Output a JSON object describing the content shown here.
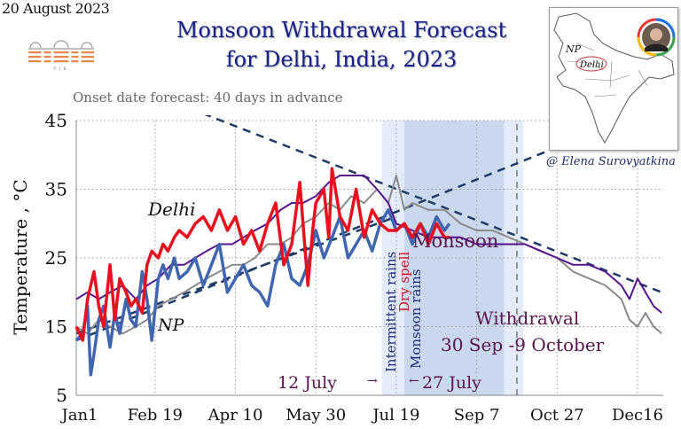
{
  "header": {
    "date": "20 August 2023",
    "title_line1": "Monsoon Withdrawal Forecast",
    "title_line2": "for Delhi, India, 2023",
    "subtitle": "Onset date forecast: 40 days in advance",
    "logo_text": "PIK",
    "credit": "@ Elena Surovyatkina"
  },
  "map_inset": {
    "labels": [
      "NP",
      "Delhi"
    ],
    "avatar": "author-photo"
  },
  "colors": {
    "delhi_max": "#e8101e",
    "delhi_min": "#4166b0",
    "np_max": "#56148e",
    "np_min": "#8a8a8a",
    "trend": "#1f3a66",
    "onset_band_light": "#e3ecf8",
    "onset_band_dark": "#c9d8ec",
    "annotation": "#5a1450",
    "title": "#1c1f8a"
  },
  "chart_data": {
    "type": "line",
    "title": "Monsoon Withdrawal Forecast for Delhi, India, 2023",
    "xlabel": "",
    "ylabel": "Temperature , °C",
    "ylim": [
      5,
      45
    ],
    "xlim_days": [
      1,
      366
    ],
    "yticks": [
      45,
      35,
      25,
      15,
      5
    ],
    "xticks": [
      {
        "day": 1,
        "label": "Jan1"
      },
      {
        "day": 50,
        "label": "Feb 19"
      },
      {
        "day": 100,
        "label": "Apr 10"
      },
      {
        "day": 150,
        "label": "May 30"
      },
      {
        "day": 200,
        "label": "Jul 19"
      },
      {
        "day": 250,
        "label": "Sep 7"
      },
      {
        "day": 300,
        "label": "Oct 27"
      },
      {
        "day": 350,
        "label": "Dec16"
      }
    ],
    "grid": true,
    "series": [
      {
        "name": "Delhi (red)",
        "x": [
          1,
          5,
          8,
          12,
          15,
          18,
          22,
          25,
          28,
          32,
          35,
          38,
          42,
          45,
          48,
          52,
          55,
          58,
          62,
          65,
          70,
          75,
          80,
          85,
          90,
          95,
          100,
          105,
          110,
          115,
          120,
          125,
          130,
          135,
          140,
          145,
          148,
          150,
          155,
          158,
          160,
          165,
          170,
          175,
          180,
          185,
          190,
          195,
          200,
          205,
          210,
          215,
          220,
          225,
          230,
          233
        ],
        "values": [
          15,
          13,
          19,
          23,
          18,
          15,
          24,
          16,
          22,
          20,
          18,
          19,
          17,
          24,
          26,
          25,
          27,
          26,
          28,
          29,
          28,
          30,
          31,
          29,
          32,
          29,
          31,
          27,
          29,
          26,
          30,
          33,
          24,
          27,
          36,
          21,
          29,
          33,
          35,
          28,
          38,
          31,
          29,
          35,
          28,
          32,
          30,
          29,
          29,
          30,
          28,
          30,
          27,
          30,
          28,
          28
        ]
      },
      {
        "name": "Delhi (blue)",
        "x": [
          1,
          5,
          8,
          10,
          12,
          15,
          18,
          22,
          25,
          28,
          32,
          35,
          38,
          42,
          45,
          48,
          52,
          55,
          58,
          62,
          65,
          70,
          75,
          80,
          85,
          90,
          95,
          100,
          105,
          110,
          115,
          120,
          125,
          130,
          135,
          140,
          145,
          150,
          155,
          160,
          165,
          170,
          175,
          180,
          185,
          190,
          195,
          200,
          205,
          210,
          215,
          220,
          225,
          230,
          233
        ],
        "values": [
          13,
          14,
          18,
          8,
          11,
          16,
          18,
          12,
          17,
          14,
          19,
          16,
          15,
          23,
          19,
          13,
          22,
          24,
          22,
          25,
          22,
          23,
          25,
          21,
          24,
          27,
          20,
          22,
          24,
          21,
          20,
          18,
          24,
          27,
          22,
          21,
          24,
          29,
          25,
          28,
          31,
          25,
          27,
          29,
          26,
          30,
          32,
          29,
          30,
          27,
          30,
          28,
          31,
          29,
          30
        ]
      },
      {
        "name": "NP (purple)",
        "x": [
          1,
          8,
          15,
          22,
          30,
          38,
          45,
          52,
          60,
          68,
          75,
          82,
          90,
          98,
          105,
          112,
          120,
          128,
          135,
          142,
          150,
          158,
          165,
          172,
          180,
          188,
          195,
          200,
          210,
          220,
          230,
          240,
          250,
          260,
          270,
          280,
          290,
          300,
          310,
          320,
          330,
          340,
          345,
          350,
          355,
          360,
          365
        ],
        "values": [
          19,
          20,
          19,
          20,
          21,
          19,
          21,
          22,
          24,
          24,
          25,
          26,
          27,
          27,
          28,
          29,
          30,
          32,
          33,
          33,
          34,
          36,
          37,
          37,
          37,
          35,
          33,
          30,
          29,
          28,
          28,
          28,
          27,
          27,
          27,
          27,
          26,
          25,
          24,
          24,
          23,
          21,
          19,
          22,
          20,
          18,
          17
        ]
      },
      {
        "name": "NP (gray)",
        "x": [
          1,
          8,
          15,
          22,
          30,
          38,
          45,
          52,
          60,
          68,
          75,
          82,
          90,
          98,
          105,
          112,
          120,
          128,
          135,
          142,
          150,
          158,
          165,
          172,
          180,
          188,
          195,
          200,
          205,
          210,
          220,
          230,
          240,
          250,
          260,
          270,
          280,
          290,
          300,
          310,
          320,
          330,
          340,
          345,
          350,
          355,
          360,
          365
        ],
        "values": [
          15,
          14,
          16,
          15,
          14,
          15,
          16,
          18,
          19,
          20,
          21,
          22,
          23,
          24,
          24,
          25,
          27,
          27,
          28,
          30,
          31,
          33,
          32,
          34,
          33,
          35,
          33,
          37,
          32,
          33,
          32,
          32,
          30,
          29,
          29,
          28,
          27,
          26,
          25,
          23,
          22,
          21,
          19,
          16,
          15,
          17,
          15,
          14
        ]
      }
    ],
    "trend_lines": [
      {
        "name": "Delhi max trend",
        "from": [
          80,
          46
        ],
        "to": [
          365,
          20
        ]
      },
      {
        "name": "NP rising trend",
        "from": [
          1,
          13
        ],
        "to": [
          320,
          43
        ]
      },
      {
        "name": "Onset rising trend",
        "from": [
          1,
          14
        ],
        "to": [
          200,
          31
        ]
      }
    ],
    "bands": [
      {
        "name": "Onset window",
        "from_day": 191,
        "to_day": 279
      },
      {
        "name": "Monsoon core",
        "from_day": 205,
        "to_day": 267
      }
    ],
    "vline_day": 275,
    "annotations": {
      "delhi_label": "Delhi",
      "np_label": "NP",
      "monsoon": "Monsoon",
      "intermittent": "Intermittent rains",
      "dry_spell": "Dry spell",
      "monsoon_rains": "Monsoon  rains",
      "date_start": "12 July",
      "date_end": "27 July",
      "withdrawal_title": "Withdrawal",
      "withdrawal_range": "30 Sep -9 October"
    }
  }
}
